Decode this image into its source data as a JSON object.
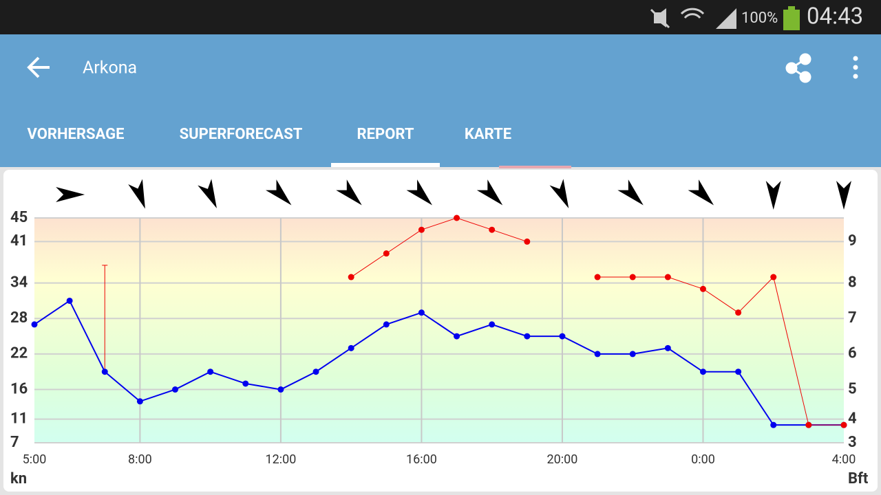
{
  "status_bar": {
    "battery": "100%",
    "time": "04:43"
  },
  "app_bar": {
    "title": "Arkona"
  },
  "tabs": [
    "VORHERSAGE",
    "SUPERFORECAST",
    "REPORT",
    "KARTE"
  ],
  "selected_tab": 2,
  "chart_data": {
    "type": "line",
    "categories": [
      "5:00",
      null,
      null,
      "8:00",
      null,
      null,
      null,
      "12:00",
      null,
      null,
      null,
      "16:00",
      null,
      null,
      null,
      "20:00",
      null,
      null,
      null,
      "0:00",
      null,
      null,
      null,
      "4:00"
    ],
    "series": [
      {
        "color": "#0000ee",
        "values": [
          27,
          31,
          19,
          14,
          16,
          19,
          17,
          16,
          19,
          23,
          27,
          29,
          25,
          27,
          25,
          25,
          22,
          22,
          23,
          19,
          19,
          10,
          10,
          10
        ]
      },
      {
        "color": "#ee0000",
        "values": [
          null,
          null,
          null,
          null,
          null,
          null,
          null,
          null,
          null,
          35,
          39,
          43,
          45,
          43,
          41,
          null,
          35,
          35,
          35,
          33,
          29,
          35,
          10,
          10
        ]
      }
    ],
    "gust_whiskers": {
      "color": "#ee0000",
      "values": [
        null,
        null,
        37,
        null,
        null,
        null,
        null,
        null,
        null,
        null,
        null,
        null,
        null,
        null,
        null,
        null,
        null,
        null,
        null,
        null,
        null,
        null,
        null,
        null
      ]
    },
    "wind_arrow_bearings": [
      null,
      90,
      null,
      160,
      null,
      155,
      null,
      135,
      null,
      135,
      null,
      135,
      null,
      135,
      null,
      155,
      null,
      135,
      null,
      135,
      null,
      180,
      null,
      180
    ],
    "ylim": [
      7,
      45
    ],
    "yticks": [
      45,
      41,
      34,
      28,
      22,
      16,
      11,
      7
    ],
    "y2_tick_labels": [
      null,
      9,
      8,
      7,
      6,
      5,
      4,
      3
    ],
    "ylabel": "kn",
    "y2label": "Bft",
    "grid": true
  }
}
